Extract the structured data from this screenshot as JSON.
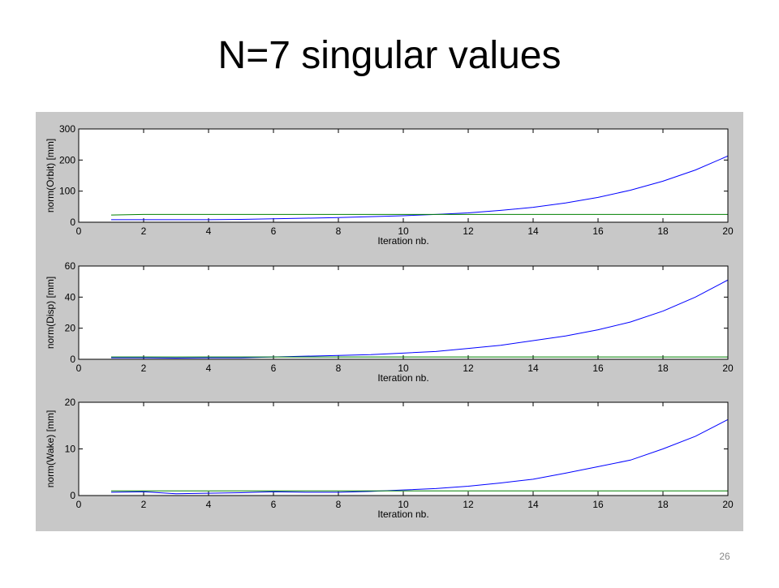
{
  "title": "N=7 singular values",
  "page_number": "26",
  "chart_data": [
    {
      "type": "line",
      "ylabel": "norm(Orbit) [mm]",
      "xlabel": "Iteration nb.",
      "x": [
        1,
        2,
        3,
        4,
        5,
        6,
        7,
        8,
        9,
        10,
        11,
        12,
        13,
        14,
        15,
        16,
        17,
        18,
        19,
        20
      ],
      "xlim": [
        0,
        20
      ],
      "xticks": [
        0,
        2,
        4,
        6,
        8,
        10,
        12,
        14,
        16,
        18,
        20
      ],
      "ylim": [
        0,
        300
      ],
      "yticks": [
        0,
        100,
        200,
        300
      ],
      "series": [
        {
          "color": "#0000ff",
          "values": [
            8,
            8,
            8,
            8,
            9,
            11,
            13,
            15,
            18,
            21,
            25,
            30,
            38,
            48,
            62,
            80,
            103,
            132,
            168,
            213
          ]
        },
        {
          "color": "#008000",
          "values": [
            23,
            25,
            25,
            25,
            25,
            25,
            25,
            25,
            25,
            25,
            25,
            25,
            25,
            25,
            25,
            25,
            25,
            25,
            25,
            25
          ]
        }
      ]
    },
    {
      "type": "line",
      "ylabel": "norm(Disp) [mm]",
      "xlabel": "Iteration nb.",
      "x": [
        1,
        2,
        3,
        4,
        5,
        6,
        7,
        8,
        9,
        10,
        11,
        12,
        13,
        14,
        15,
        16,
        17,
        18,
        19,
        20
      ],
      "xlim": [
        0,
        20
      ],
      "xticks": [
        0,
        2,
        4,
        6,
        8,
        10,
        12,
        14,
        16,
        18,
        20
      ],
      "ylim": [
        0,
        60
      ],
      "yticks": [
        0,
        20,
        40,
        60
      ],
      "series": [
        {
          "color": "#0000ff",
          "values": [
            1,
            1,
            0.8,
            1,
            1,
            1.5,
            2,
            2.5,
            3,
            4,
            5,
            7,
            9,
            12,
            15,
            19,
            24,
            31,
            40,
            51
          ]
        },
        {
          "color": "#008000",
          "values": [
            1.5,
            1.5,
            1.5,
            1.5,
            1.5,
            1.5,
            1.5,
            1.5,
            1.5,
            1.5,
            1.5,
            1.5,
            1.5,
            1.5,
            1.5,
            1.5,
            1.5,
            1.5,
            1.5,
            1.5
          ]
        }
      ]
    },
    {
      "type": "line",
      "ylabel": "norm(Wake) [mm]",
      "xlabel": "Iteration nb.",
      "x": [
        1,
        2,
        3,
        4,
        5,
        6,
        7,
        8,
        9,
        10,
        11,
        12,
        13,
        14,
        15,
        16,
        17,
        18,
        19,
        20
      ],
      "xlim": [
        0,
        20
      ],
      "xticks": [
        0,
        2,
        4,
        6,
        8,
        10,
        12,
        14,
        16,
        18,
        20
      ],
      "ylim": [
        0,
        20
      ],
      "yticks": [
        0,
        10,
        20
      ],
      "series": [
        {
          "color": "#0000ff",
          "values": [
            0.7,
            0.8,
            0.4,
            0.5,
            0.6,
            0.8,
            0.7,
            0.7,
            0.9,
            1.2,
            1.5,
            2,
            2.7,
            3.5,
            4.8,
            6.2,
            7.6,
            10,
            12.7,
            16.3
          ]
        },
        {
          "color": "#008000",
          "values": [
            1,
            1,
            1,
            1,
            1,
            1,
            1,
            1,
            1,
            1,
            1,
            1,
            1,
            1,
            1,
            1,
            1,
            1,
            1,
            1
          ]
        }
      ]
    }
  ]
}
